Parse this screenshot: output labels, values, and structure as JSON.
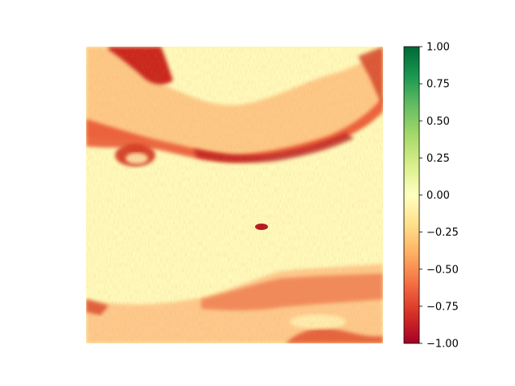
{
  "chart_data": {
    "type": "heatmap",
    "title": "",
    "xlabel": "",
    "ylabel": "",
    "axes_visible": false,
    "colormap": "RdYlGn",
    "value_range": [
      -1.0,
      1.0
    ],
    "regions": [
      {
        "description": "background field",
        "value": 0.0
      },
      {
        "description": "upper curved band",
        "value_range": [
          -0.9,
          -0.2
        ]
      },
      {
        "description": "lower band",
        "value_range": [
          -0.7,
          -0.2
        ]
      },
      {
        "description": "small central speck",
        "value": -0.9
      }
    ],
    "colorbar": {
      "ticks": [
        1.0,
        0.75,
        0.5,
        0.25,
        0.0,
        -0.25,
        -0.5,
        -0.75,
        -1.0
      ],
      "tick_labels": [
        "1.00",
        "0.75",
        "0.50",
        "0.25",
        "0.00",
        "−0.25",
        "−0.50",
        "−0.75",
        "−1.00"
      ],
      "colors": [
        "#006837",
        "#1a9850",
        "#66bd63",
        "#a6d96a",
        "#d9ef8b",
        "#ffffbf",
        "#fee08b",
        "#fdae61",
        "#f46d43",
        "#d73027",
        "#a50026"
      ]
    }
  }
}
